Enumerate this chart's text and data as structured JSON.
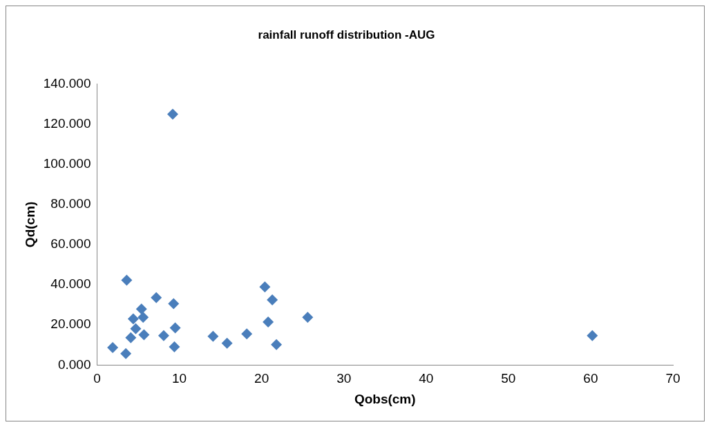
{
  "chart_data": {
    "type": "scatter",
    "title": "rainfall runoff distribution -AUG",
    "xlabel": "Qobs(cm)",
    "ylabel": "Qd(cm)",
    "x": [
      1.9,
      3.5,
      3.6,
      4.1,
      4.4,
      4.7,
      5.4,
      5.6,
      5.7,
      7.2,
      8.1,
      9.3,
      9.5,
      9.4,
      9.2,
      14.1,
      15.8,
      18.2,
      20.4,
      21.3,
      20.8,
      21.8,
      25.6,
      60.2
    ],
    "series": [
      {
        "color": "#4a7ebb",
        "values": [
          8.7,
          5.7,
          42.3,
          13.6,
          23.0,
          18.1,
          27.9,
          23.8,
          15.1,
          33.6,
          14.7,
          30.6,
          18.5,
          9.1,
          124.9,
          14.3,
          10.9,
          15.5,
          38.9,
          32.5,
          21.5,
          10.2,
          23.8,
          14.7
        ]
      }
    ],
    "xlim": [
      0,
      70
    ],
    "xticks": [
      0,
      10,
      20,
      30,
      40,
      50,
      60,
      70
    ],
    "ylim": [
      0,
      140
    ],
    "yticks": [
      {
        "value": 0,
        "label": "0.000"
      },
      {
        "value": 20,
        "label": "20.000"
      },
      {
        "value": 40,
        "label": "40.000"
      },
      {
        "value": 60,
        "label": "60.000"
      },
      {
        "value": 80,
        "label": "80.000"
      },
      {
        "value": 100,
        "label": "100.000"
      },
      {
        "value": 120,
        "label": "120.000"
      },
      {
        "value": 140,
        "label": "140.000"
      }
    ],
    "grid": false,
    "legend": false,
    "marker": "diamond"
  }
}
